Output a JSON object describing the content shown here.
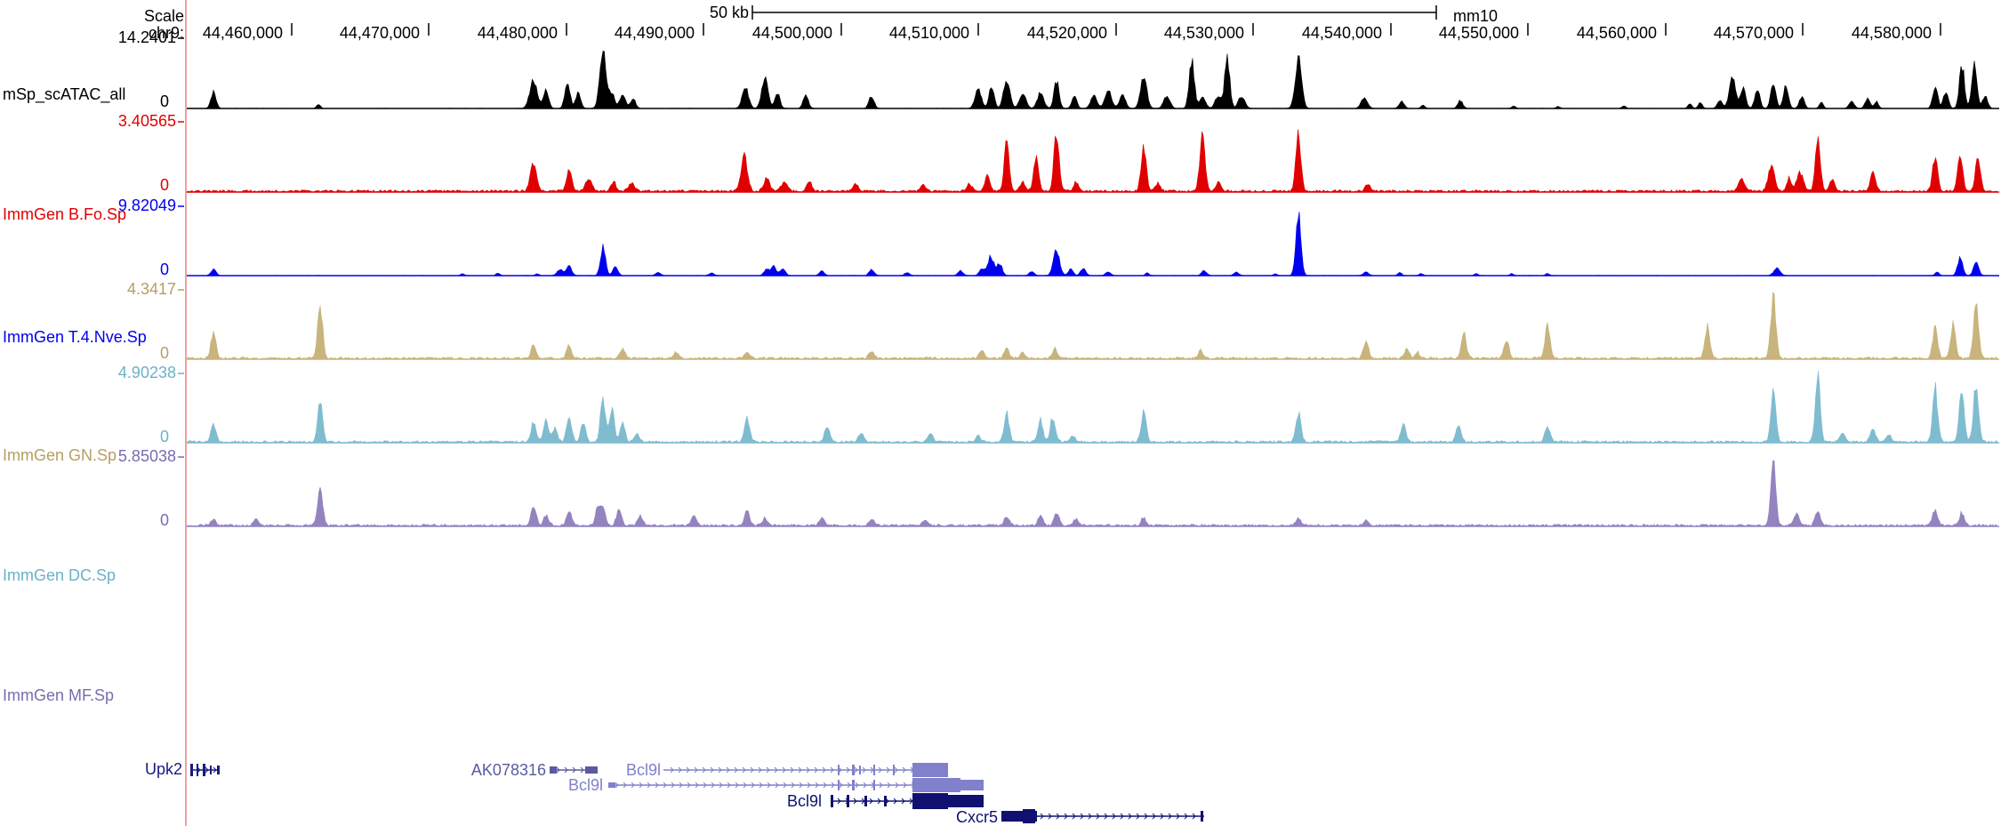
{
  "header": {
    "scale_label": "Scale",
    "chrom_label": "chr9:",
    "scale_bar_label": "50 kb",
    "assembly": "mm10",
    "positions": [
      "44,460,000",
      "44,470,000",
      "44,480,000",
      "44,490,000",
      "44,500,000",
      "44,510,000",
      "44,520,000",
      "44,530,000",
      "44,540,000",
      "44,550,000",
      "44,560,000",
      "44,570,000",
      "44,580,000"
    ]
  },
  "tracks": [
    {
      "name": "mSp_scATAC_all",
      "max": "14.2401",
      "min": "0",
      "color": "#000000",
      "label_color": "#000000",
      "profile": "allsc"
    },
    {
      "name": "ImmGen B.Fo.Sp",
      "max": "3.40565",
      "min": "0",
      "color": "#e00000",
      "label_color": "#e00000",
      "profile": "b"
    },
    {
      "name": "ImmGen T.4.Nve.Sp",
      "max": "9.82049",
      "min": "0",
      "color": "#0000ee",
      "label_color": "#0000ee",
      "profile": "t"
    },
    {
      "name": "ImmGen GN.Sp",
      "max": "4.3417",
      "min": "0",
      "color": "#c8b47c",
      "label_color": "#b79f62",
      "profile": "gn"
    },
    {
      "name": "ImmGen DC.Sp",
      "max": "4.90238",
      "min": "0",
      "color": "#7fbcd0",
      "label_color": "#6bb1c9",
      "profile": "dc"
    },
    {
      "name": "ImmGen MF.Sp",
      "max": "5.85038",
      "min": "0",
      "color": "#9384c0",
      "label_color": "#7b6bb0",
      "profile": "mf"
    }
  ],
  "genes": [
    {
      "name": "Upk2",
      "color": "#1a1a80"
    },
    {
      "name": "AK078316",
      "color": "#5a5aa0"
    },
    {
      "name": "Bcl9l",
      "color": "#8080cc"
    },
    {
      "name": "Bcl9l",
      "color": "#8080cc"
    },
    {
      "name": "Bcl9l",
      "color": "#101070"
    },
    {
      "name": "Cxcr5",
      "color": "#101070"
    }
  ],
  "colors": {
    "red_line": "#e88080",
    "axis": "#000000"
  }
}
